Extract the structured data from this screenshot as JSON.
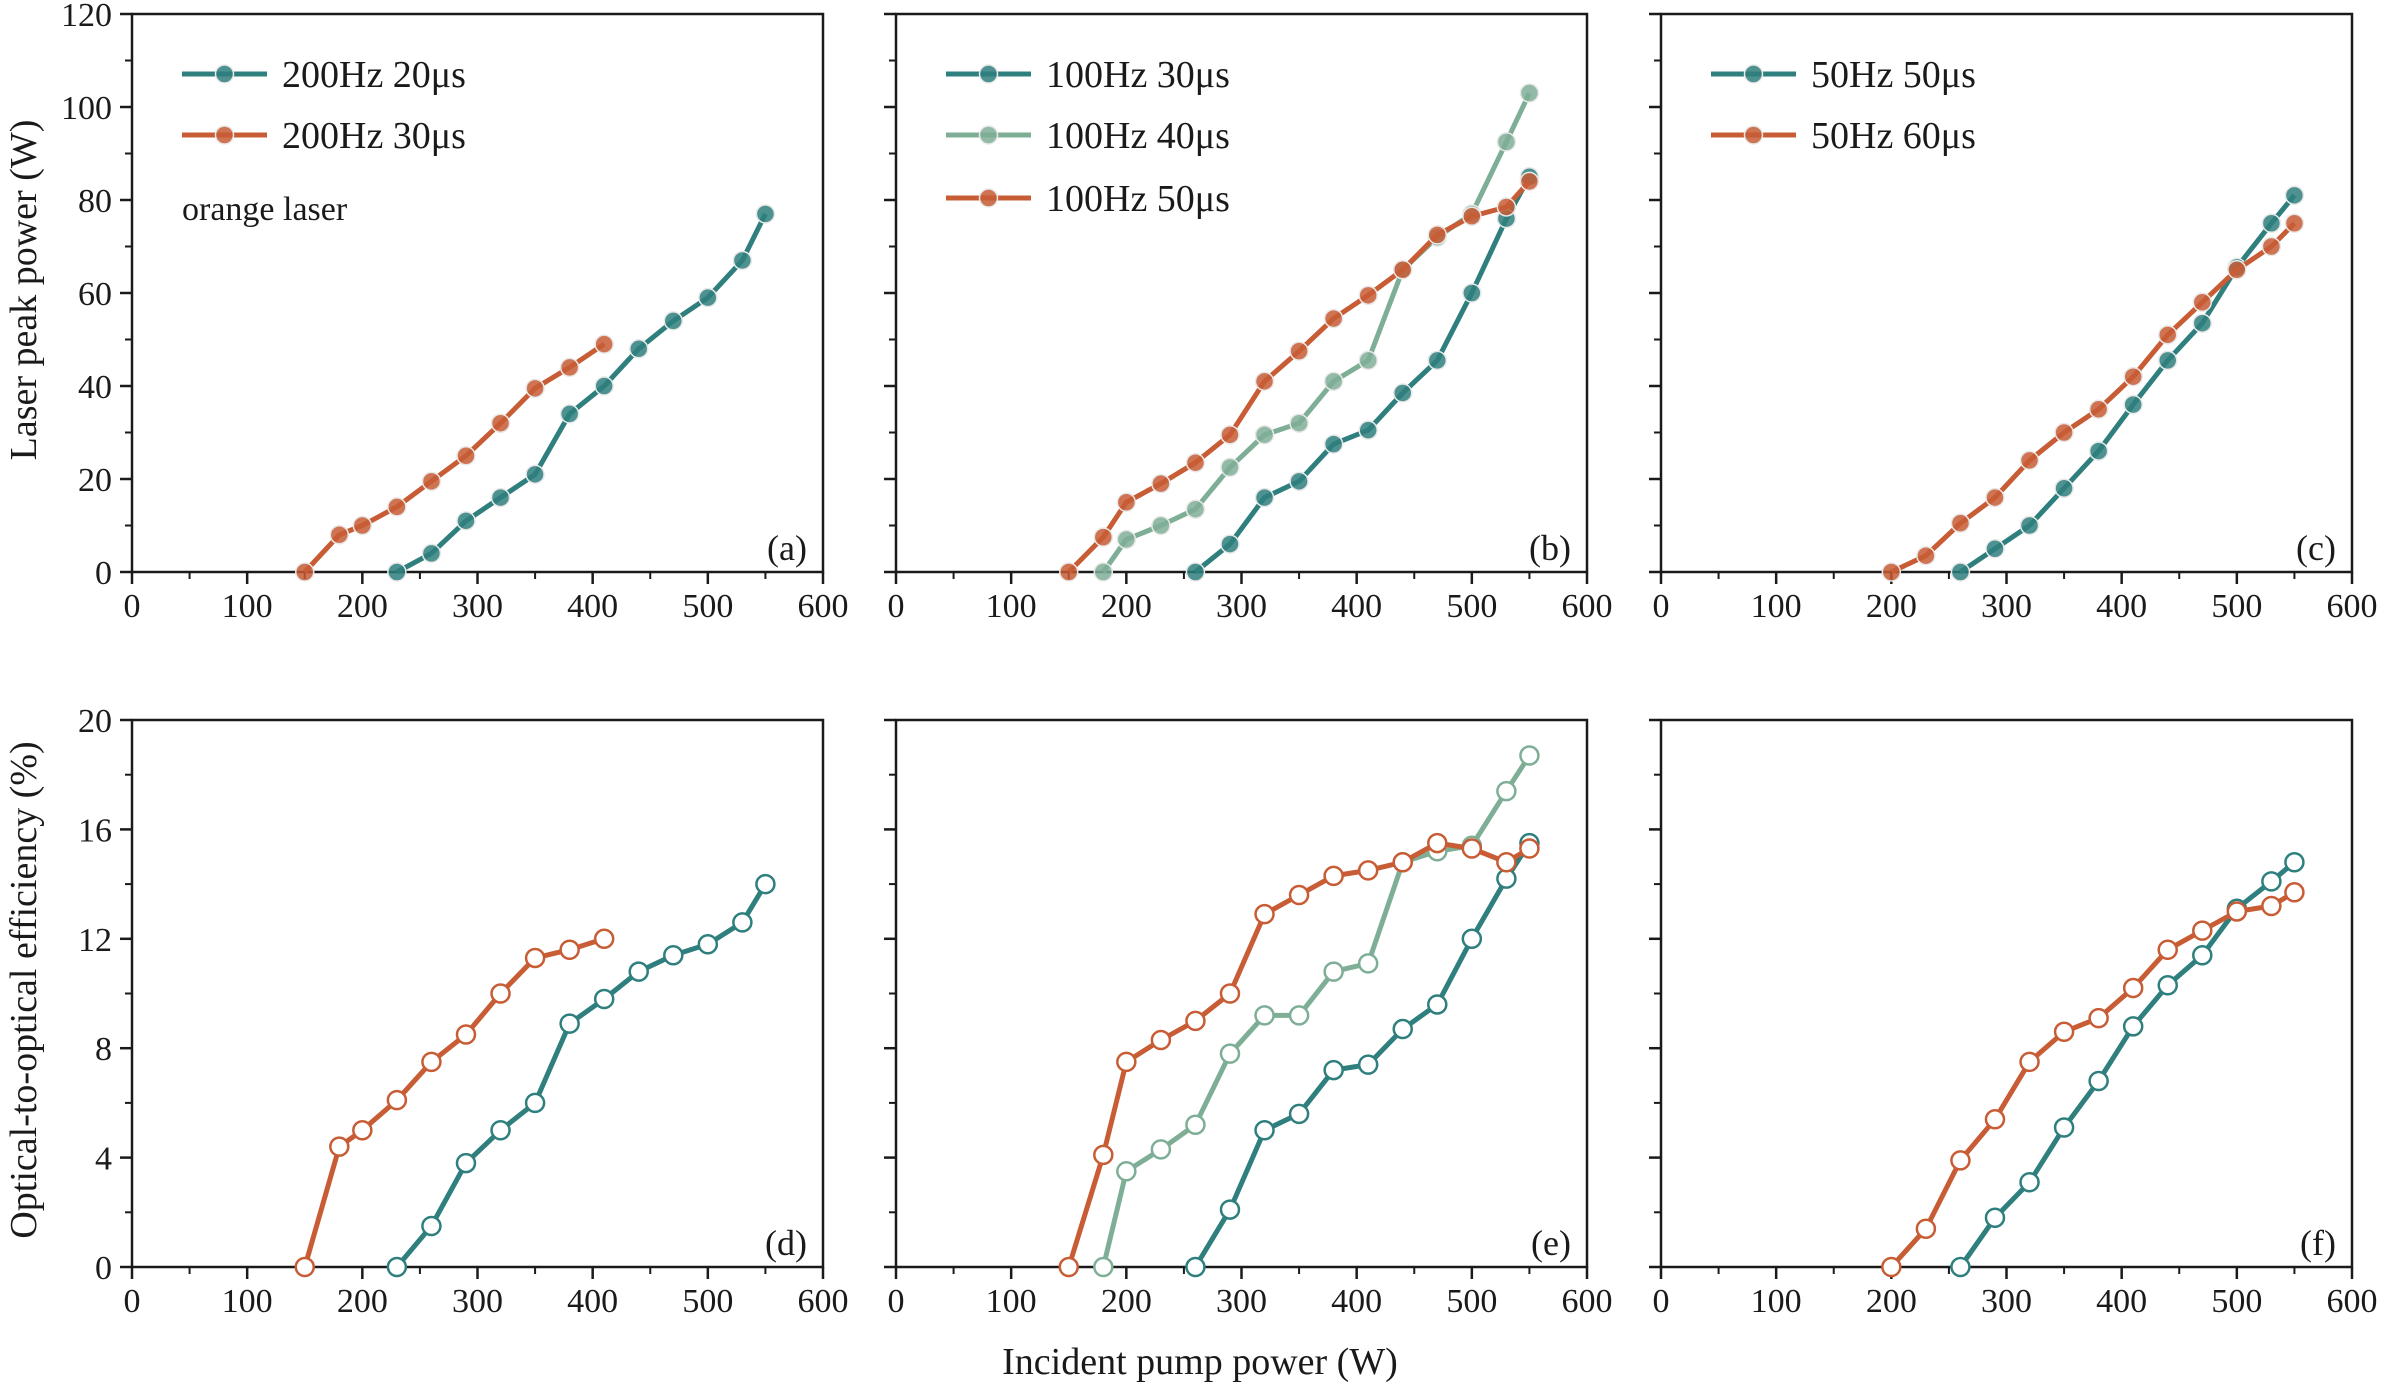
{
  "figure": {
    "ylabel_top": "Laser peak power (W)",
    "ylabel_bottom": "Optical-to-optical efficiency (%)",
    "xlabel": "Incident pump power (W)"
  },
  "colors": {
    "teal": "#2e7f7d",
    "sage": "#7fae97",
    "orange": "#c75c35"
  },
  "chart_data": [
    {
      "panel": "(a)",
      "type": "line",
      "note": "orange laser",
      "xlim": [
        0,
        600
      ],
      "ylim": [
        0,
        120
      ],
      "xticks": [
        0,
        100,
        200,
        300,
        400,
        500,
        600
      ],
      "yticks": [
        0,
        20,
        40,
        60,
        80,
        100,
        120
      ],
      "legend_position": "top-left",
      "marker": "filled",
      "series": [
        {
          "name": "200Hz 20μs",
          "color": "#2e7f7d",
          "x": [
            230,
            260,
            290,
            320,
            350,
            380,
            410,
            440,
            470,
            500,
            530,
            550
          ],
          "y": [
            0,
            4,
            11,
            16,
            21,
            34,
            40,
            48,
            54,
            59,
            67,
            77
          ]
        },
        {
          "name": "200Hz 30μs",
          "color": "#c75c35",
          "x": [
            150,
            180,
            200,
            230,
            260,
            290,
            320,
            350,
            380,
            410
          ],
          "y": [
            0,
            8,
            10,
            14,
            19.5,
            25,
            32,
            39.5,
            44,
            49
          ]
        }
      ]
    },
    {
      "panel": "(b)",
      "type": "line",
      "note": "",
      "xlim": [
        0,
        600
      ],
      "ylim": [
        0,
        120
      ],
      "xticks": [
        0,
        100,
        200,
        300,
        400,
        500,
        600
      ],
      "yticks": [
        0,
        20,
        40,
        60,
        80,
        100,
        120
      ],
      "legend_position": "top-left",
      "marker": "filled",
      "series": [
        {
          "name": "100Hz 30μs",
          "color": "#2e7f7d",
          "x": [
            260,
            290,
            320,
            350,
            380,
            410,
            440,
            470,
            500,
            530,
            550
          ],
          "y": [
            0,
            6,
            16,
            19.5,
            27.5,
            30.5,
            38.5,
            45.5,
            60,
            76,
            85
          ]
        },
        {
          "name": "100Hz 40μs",
          "color": "#7fae97",
          "x": [
            180,
            200,
            230,
            260,
            290,
            320,
            350,
            380,
            410,
            440,
            470,
            500,
            530,
            550
          ],
          "y": [
            0,
            7,
            10,
            13.5,
            22.5,
            29.5,
            32,
            41,
            45.5,
            65,
            72,
            77,
            92.5,
            103
          ]
        },
        {
          "name": "100Hz 50μs",
          "color": "#c75c35",
          "x": [
            150,
            180,
            200,
            230,
            260,
            290,
            320,
            350,
            380,
            410,
            440,
            470,
            500,
            530,
            550
          ],
          "y": [
            0,
            7.5,
            15,
            19,
            23.5,
            29.5,
            41,
            47.5,
            54.5,
            59.5,
            65,
            72.5,
            76.5,
            78.5,
            84
          ]
        }
      ]
    },
    {
      "panel": "(c)",
      "type": "line",
      "note": "",
      "xlim": [
        0,
        600
      ],
      "ylim": [
        0,
        120
      ],
      "xticks": [
        0,
        100,
        200,
        300,
        400,
        500,
        600
      ],
      "yticks": [
        0,
        20,
        40,
        60,
        80,
        100,
        120
      ],
      "legend_position": "top-left",
      "marker": "filled",
      "series": [
        {
          "name": "50Hz 50μs",
          "color": "#2e7f7d",
          "x": [
            260,
            290,
            320,
            350,
            380,
            410,
            440,
            470,
            500,
            530,
            550
          ],
          "y": [
            0,
            5,
            10,
            18,
            26,
            36,
            45.5,
            53.5,
            65.5,
            75,
            81
          ]
        },
        {
          "name": "50Hz 60μs",
          "color": "#c75c35",
          "x": [
            200,
            230,
            260,
            290,
            320,
            350,
            380,
            410,
            440,
            470,
            500,
            530,
            550
          ],
          "y": [
            0,
            3.5,
            10.5,
            16,
            24,
            30,
            35,
            42,
            51,
            58,
            65,
            70,
            75
          ]
        }
      ]
    },
    {
      "panel": "(d)",
      "type": "line",
      "note": "",
      "xlim": [
        0,
        600
      ],
      "ylim": [
        0,
        20
      ],
      "xticks": [
        0,
        100,
        200,
        300,
        400,
        500,
        600
      ],
      "yticks": [
        0,
        4,
        8,
        12,
        16,
        20
      ],
      "legend_position": "none",
      "marker": "open",
      "series": [
        {
          "color": "#2e7f7d",
          "x": [
            230,
            260,
            290,
            320,
            350,
            380,
            410,
            440,
            470,
            500,
            530,
            550
          ],
          "y": [
            0,
            1.5,
            3.8,
            5,
            6,
            8.9,
            9.8,
            10.8,
            11.4,
            11.8,
            12.6,
            14
          ]
        },
        {
          "color": "#c75c35",
          "x": [
            150,
            180,
            200,
            230,
            260,
            290,
            320,
            350,
            380,
            410
          ],
          "y": [
            0,
            4.4,
            5,
            6.1,
            7.5,
            8.5,
            10,
            11.3,
            11.6,
            12
          ]
        }
      ]
    },
    {
      "panel": "(e)",
      "type": "line",
      "note": "",
      "xlim": [
        0,
        600
      ],
      "ylim": [
        0,
        20
      ],
      "xticks": [
        0,
        100,
        200,
        300,
        400,
        500,
        600
      ],
      "yticks": [
        0,
        4,
        8,
        12,
        16,
        20
      ],
      "legend_position": "none",
      "marker": "open",
      "series": [
        {
          "color": "#2e7f7d",
          "x": [
            260,
            290,
            320,
            350,
            380,
            410,
            440,
            470,
            500,
            530,
            550
          ],
          "y": [
            0,
            2.1,
            5,
            5.6,
            7.2,
            7.4,
            8.7,
            9.6,
            12,
            14.2,
            15.5
          ]
        },
        {
          "color": "#7fae97",
          "x": [
            180,
            200,
            230,
            260,
            290,
            320,
            350,
            380,
            410,
            440,
            470,
            500,
            530,
            550
          ],
          "y": [
            0,
            3.5,
            4.3,
            5.2,
            7.8,
            9.2,
            9.2,
            10.8,
            11.1,
            14.8,
            15.2,
            15.4,
            17.4,
            18.7
          ]
        },
        {
          "color": "#c75c35",
          "x": [
            150,
            180,
            200,
            230,
            260,
            290,
            320,
            350,
            380,
            410,
            440,
            470,
            500,
            530,
            550
          ],
          "y": [
            0,
            4.1,
            7.5,
            8.3,
            9,
            10,
            12.9,
            13.6,
            14.3,
            14.5,
            14.8,
            15.5,
            15.3,
            14.8,
            15.3
          ]
        }
      ]
    },
    {
      "panel": "(f)",
      "type": "line",
      "note": "",
      "xlim": [
        0,
        600
      ],
      "ylim": [
        0,
        20
      ],
      "xticks": [
        0,
        100,
        200,
        300,
        400,
        500,
        600
      ],
      "yticks": [
        0,
        4,
        8,
        12,
        16,
        20
      ],
      "legend_position": "none",
      "marker": "open",
      "series": [
        {
          "color": "#2e7f7d",
          "x": [
            260,
            290,
            320,
            350,
            380,
            410,
            440,
            470,
            500,
            530,
            550
          ],
          "y": [
            0,
            1.8,
            3.1,
            5.1,
            6.8,
            8.8,
            10.3,
            11.4,
            13.1,
            14.1,
            14.8
          ]
        },
        {
          "color": "#c75c35",
          "x": [
            200,
            230,
            260,
            290,
            320,
            350,
            380,
            410,
            440,
            470,
            500,
            530,
            550
          ],
          "y": [
            0,
            1.4,
            3.9,
            5.4,
            7.5,
            8.6,
            9.1,
            10.2,
            11.6,
            12.3,
            13,
            13.2,
            13.7
          ]
        }
      ]
    }
  ]
}
